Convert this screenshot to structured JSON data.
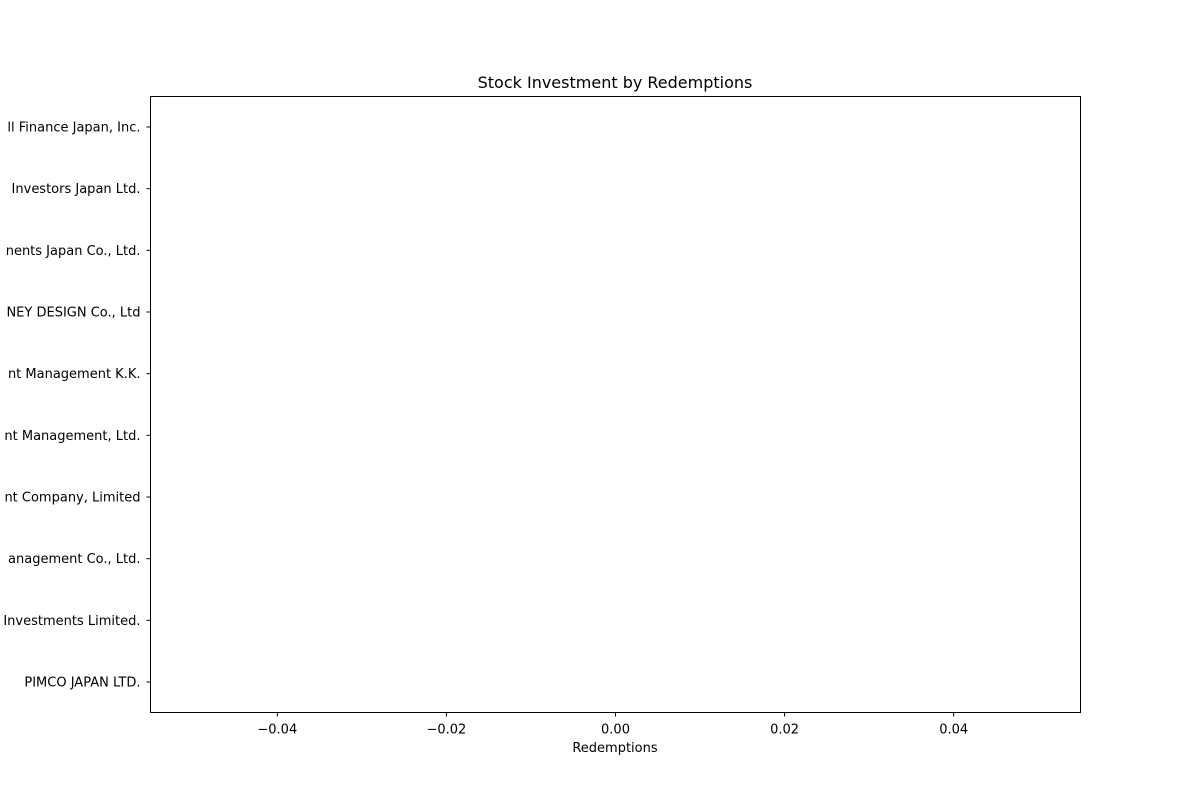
{
  "chart_data": {
    "type": "bar",
    "orientation": "horizontal",
    "title": "Stock Investment by Redemptions",
    "xlabel": "Redemptions",
    "ylabel": "",
    "categories": [
      "PIMCO JAPAN LTD.",
      "Investments Limited.",
      "anagement Co., Ltd. ",
      "nt Company, Limited",
      "nt Management, Ltd.",
      "nt Management K.K.",
      "NEY DESIGN Co., Ltd",
      "nents Japan Co., Ltd.",
      "Investors Japan Ltd.",
      "ll Finance Japan, Inc."
    ],
    "values": [
      0,
      0,
      0,
      0,
      0,
      0,
      0,
      0,
      0,
      0
    ],
    "xlim": [
      -0.055,
      0.055
    ],
    "xticks": [
      -0.04,
      -0.02,
      0.0,
      0.02,
      0.04
    ],
    "xtick_labels": [
      "−0.04",
      "−0.02",
      "0.00",
      "0.02",
      "0.04"
    ],
    "grid": false,
    "legend": "none"
  }
}
